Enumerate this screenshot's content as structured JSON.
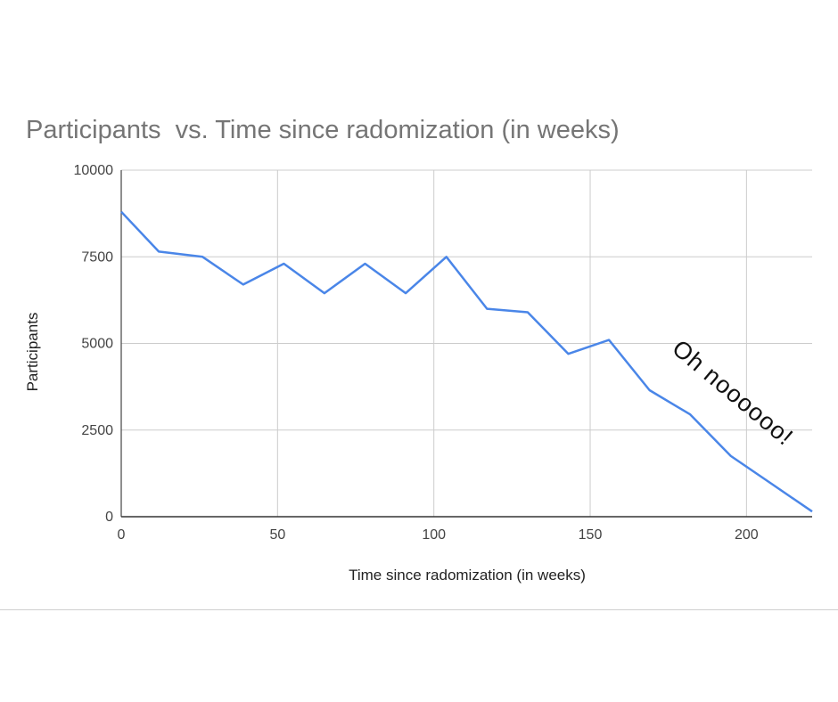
{
  "chart_data": {
    "type": "line",
    "title": "Participants  vs. Time since radomization (in weeks)",
    "xlabel": "Time since radomization (in weeks)",
    "ylabel": "Participants",
    "xlim": [
      0,
      221
    ],
    "ylim": [
      0,
      10000
    ],
    "x_ticks": [
      0,
      50,
      100,
      150,
      200
    ],
    "y_ticks": [
      0,
      2500,
      5000,
      7500,
      10000
    ],
    "grid": true,
    "series": [
      {
        "color": "#4a86e8",
        "x": [
          0,
          12,
          26,
          39,
          52,
          65,
          78,
          91,
          104,
          117,
          130,
          143,
          156,
          169,
          182,
          195,
          208,
          221
        ],
        "y": [
          8800,
          7650,
          7500,
          6700,
          7300,
          6450,
          7300,
          6450,
          7500,
          6000,
          5900,
          4700,
          5100,
          3650,
          2950,
          1750,
          950,
          150
        ]
      }
    ],
    "annotations": [
      {
        "text": "Oh noooooo!",
        "x": 194,
        "y": 3400
      }
    ]
  }
}
